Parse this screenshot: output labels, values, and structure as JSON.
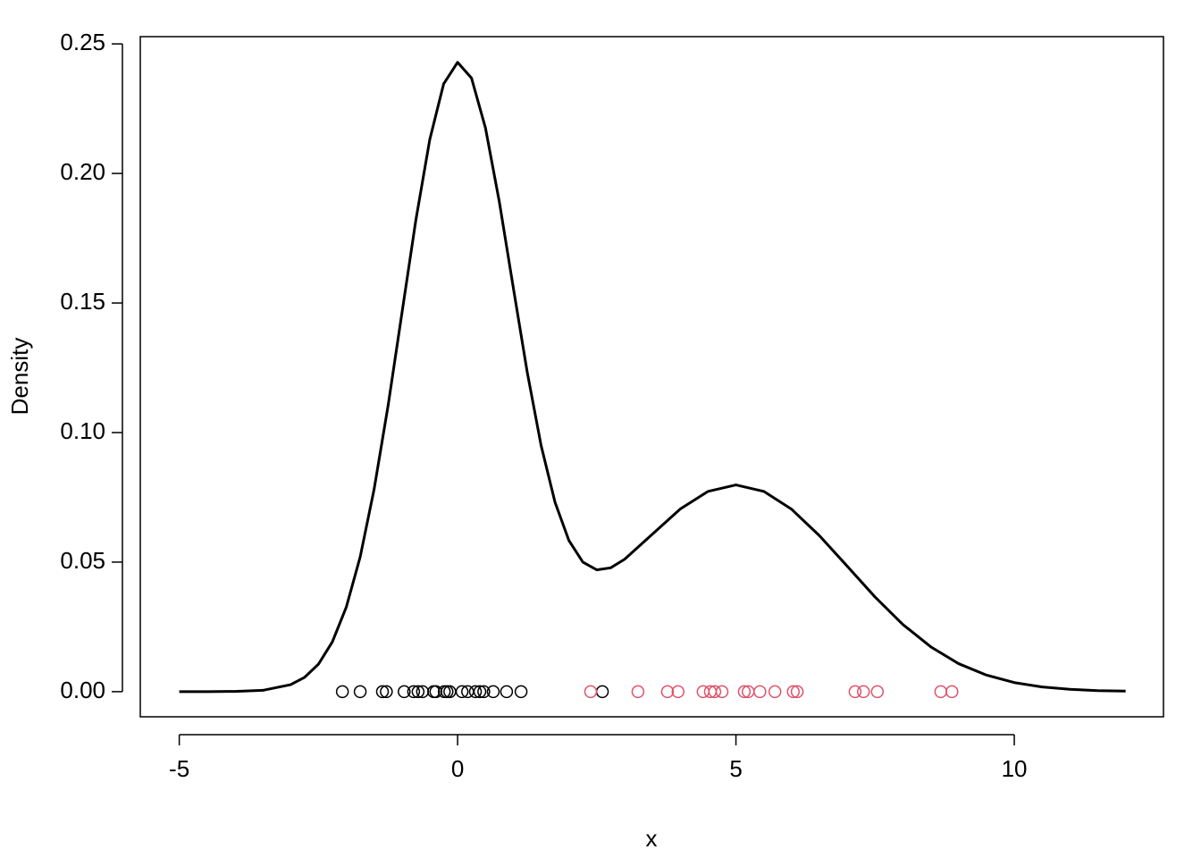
{
  "chart_data": {
    "type": "line",
    "xlabel": "x",
    "ylabel": "Density",
    "xlim": [
      -5.7,
      12.68
    ],
    "ylim": [
      -0.0097,
      0.2528
    ],
    "xticks": [
      -5,
      0,
      5,
      10
    ],
    "yticks": [
      {
        "value": 0,
        "label": "0.00"
      },
      {
        "value": 0.05,
        "label": "0.05"
      },
      {
        "value": 0.1,
        "label": "0.10"
      },
      {
        "value": 0.15,
        "label": "0.15"
      },
      {
        "value": 0.2,
        "label": "0.20"
      },
      {
        "value": 0.25,
        "label": "0.25"
      }
    ],
    "series": [
      {
        "style": "line",
        "color": "#000000",
        "x": [
          -5,
          -4.5,
          -4,
          -3.5,
          -3,
          -2.75,
          -2.5,
          -2.25,
          -2,
          -1.75,
          -1.5,
          -1.25,
          -1,
          -0.75,
          -0.5,
          -0.25,
          0,
          0.25,
          0.5,
          0.75,
          1,
          1.25,
          1.5,
          1.75,
          2,
          2.25,
          2.5,
          2.75,
          3,
          3.5,
          4,
          4.5,
          5,
          5.5,
          6,
          6.5,
          7,
          7.5,
          8,
          8.5,
          9,
          9.5,
          10,
          10.5,
          11,
          11.5,
          12
        ],
        "values": [
          0.0,
          0.0,
          0.0001,
          0.0005,
          0.0027,
          0.0055,
          0.0106,
          0.0192,
          0.0326,
          0.052,
          0.0781,
          0.1102,
          0.1461,
          0.182,
          0.2131,
          0.2346,
          0.2429,
          0.2368,
          0.2176,
          0.189,
          0.156,
          0.1234,
          0.095,
          0.0731,
          0.0583,
          0.05,
          0.047,
          0.0478,
          0.0511,
          0.0608,
          0.0705,
          0.0773,
          0.0798,
          0.0773,
          0.0704,
          0.0602,
          0.0484,
          0.0365,
          0.0259,
          0.0173,
          0.0108,
          0.0064,
          0.0035,
          0.0018,
          0.0009,
          0.0004,
          0.0002
        ]
      },
      {
        "style": "points",
        "color": "#000000",
        "x": [
          -2.07,
          -1.75,
          -1.35,
          -1.28,
          -0.96,
          -0.79,
          -0.71,
          -0.63,
          -0.43,
          -0.39,
          -0.24,
          -0.19,
          -0.14,
          0.08,
          0.18,
          0.32,
          0.4,
          0.47,
          0.64,
          0.88,
          1.14,
          2.6
        ],
        "values": [
          0,
          0,
          0,
          0,
          0,
          0,
          0,
          0,
          0,
          0,
          0,
          0,
          0,
          0,
          0,
          0,
          0,
          0,
          0,
          0,
          0,
          0
        ]
      },
      {
        "style": "points",
        "color": "#df536b",
        "x": [
          2.39,
          3.24,
          3.77,
          3.96,
          4.41,
          4.54,
          4.62,
          4.75,
          5.15,
          5.22,
          5.43,
          5.7,
          6.03,
          6.1,
          7.14,
          7.29,
          7.54,
          8.68,
          8.88
        ],
        "values": [
          0,
          0,
          0,
          0,
          0,
          0,
          0,
          0,
          0,
          0,
          0,
          0,
          0,
          0,
          0,
          0,
          0,
          0,
          0
        ]
      }
    ]
  }
}
